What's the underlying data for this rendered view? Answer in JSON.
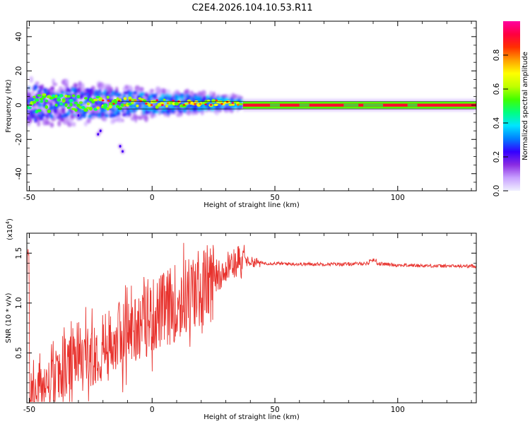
{
  "title": "C2E4.2026.104.10.53.R11",
  "chart_data": [
    {
      "type": "heatmap",
      "name": "spectrogram",
      "xlabel": "Height of straight line (km)",
      "ylabel": "Frequency (Hz)",
      "xlim": [
        -51,
        132
      ],
      "ylim": [
        -50,
        49
      ],
      "xticks": [
        -50,
        0,
        50,
        100
      ],
      "yticks": [
        40,
        20,
        0,
        -20,
        -40
      ],
      "colorbar": {
        "label": "Normalized spectral amplitude",
        "range": [
          0,
          1
        ],
        "ticks": [
          "0.0",
          "0.2",
          "0.4",
          "0.6",
          "0.8"
        ],
        "colormap": [
          "#f0f0ff",
          "#c8a0ff",
          "#8a2be2",
          "#3300ff",
          "#0080ff",
          "#00e5ff",
          "#00ff80",
          "#40ff00",
          "#c0ff00",
          "#ffff00",
          "#ffa000",
          "#ff3000",
          "#ff0040",
          "#ff00a0"
        ]
      },
      "segments": [
        {
          "name": "scattered-noisy-region",
          "x_range": [
            -51,
            37
          ],
          "freq_center_hz": 1,
          "spread_hz": [
            -8,
            10
          ],
          "peak_amplitude": 0.95
        },
        {
          "name": "steady-carrier-band",
          "x_range": [
            37,
            132
          ],
          "freq_center_hz": 0,
          "band_hz": [
            -1.5,
            1.5
          ],
          "peak_amplitude": 0.95
        },
        {
          "name": "outlier-blobs",
          "points": [
            [
              -30,
              -6
            ],
            [
              -22,
              -17
            ],
            [
              -21,
              -15
            ],
            [
              -13,
              -24
            ],
            [
              -12,
              -27
            ]
          ]
        }
      ],
      "band_edge_hz": [
        -2.2,
        2.2
      ]
    },
    {
      "type": "line",
      "name": "snr-trace",
      "series": [
        {
          "name": "SNR",
          "color": "#e8322d",
          "description": "noisy ramp from near 0 at -50 km to ~1.45 at 35 km, then steady ~1.37-1.40 to 132 km"
        }
      ],
      "xlabel": "Height of straight line (km)",
      "ylabel": "SNR (10 * v/v)",
      "scale_label": "(x10",
      "scale_exponent": "4",
      "xlim": [
        -51,
        132
      ],
      "ylim": [
        0,
        1.7
      ],
      "xticks": [
        -50,
        0,
        50,
        100
      ],
      "yticks": [
        0.5,
        1.0,
        1.5
      ],
      "ytick_labels": [
        "0.5",
        "1.0",
        "1.5"
      ],
      "keypoints": [
        [
          -50,
          0.1
        ],
        [
          -40,
          0.25
        ],
        [
          -30,
          0.45
        ],
        [
          -20,
          0.6
        ],
        [
          -10,
          0.75
        ],
        [
          0,
          0.9
        ],
        [
          10,
          1.05
        ],
        [
          20,
          1.2
        ],
        [
          30,
          1.35
        ],
        [
          38,
          1.42
        ],
        [
          45,
          1.4
        ],
        [
          60,
          1.39
        ],
        [
          80,
          1.39
        ],
        [
          90,
          1.4
        ],
        [
          100,
          1.38
        ],
        [
          120,
          1.37
        ],
        [
          132,
          1.37
        ]
      ]
    }
  ]
}
